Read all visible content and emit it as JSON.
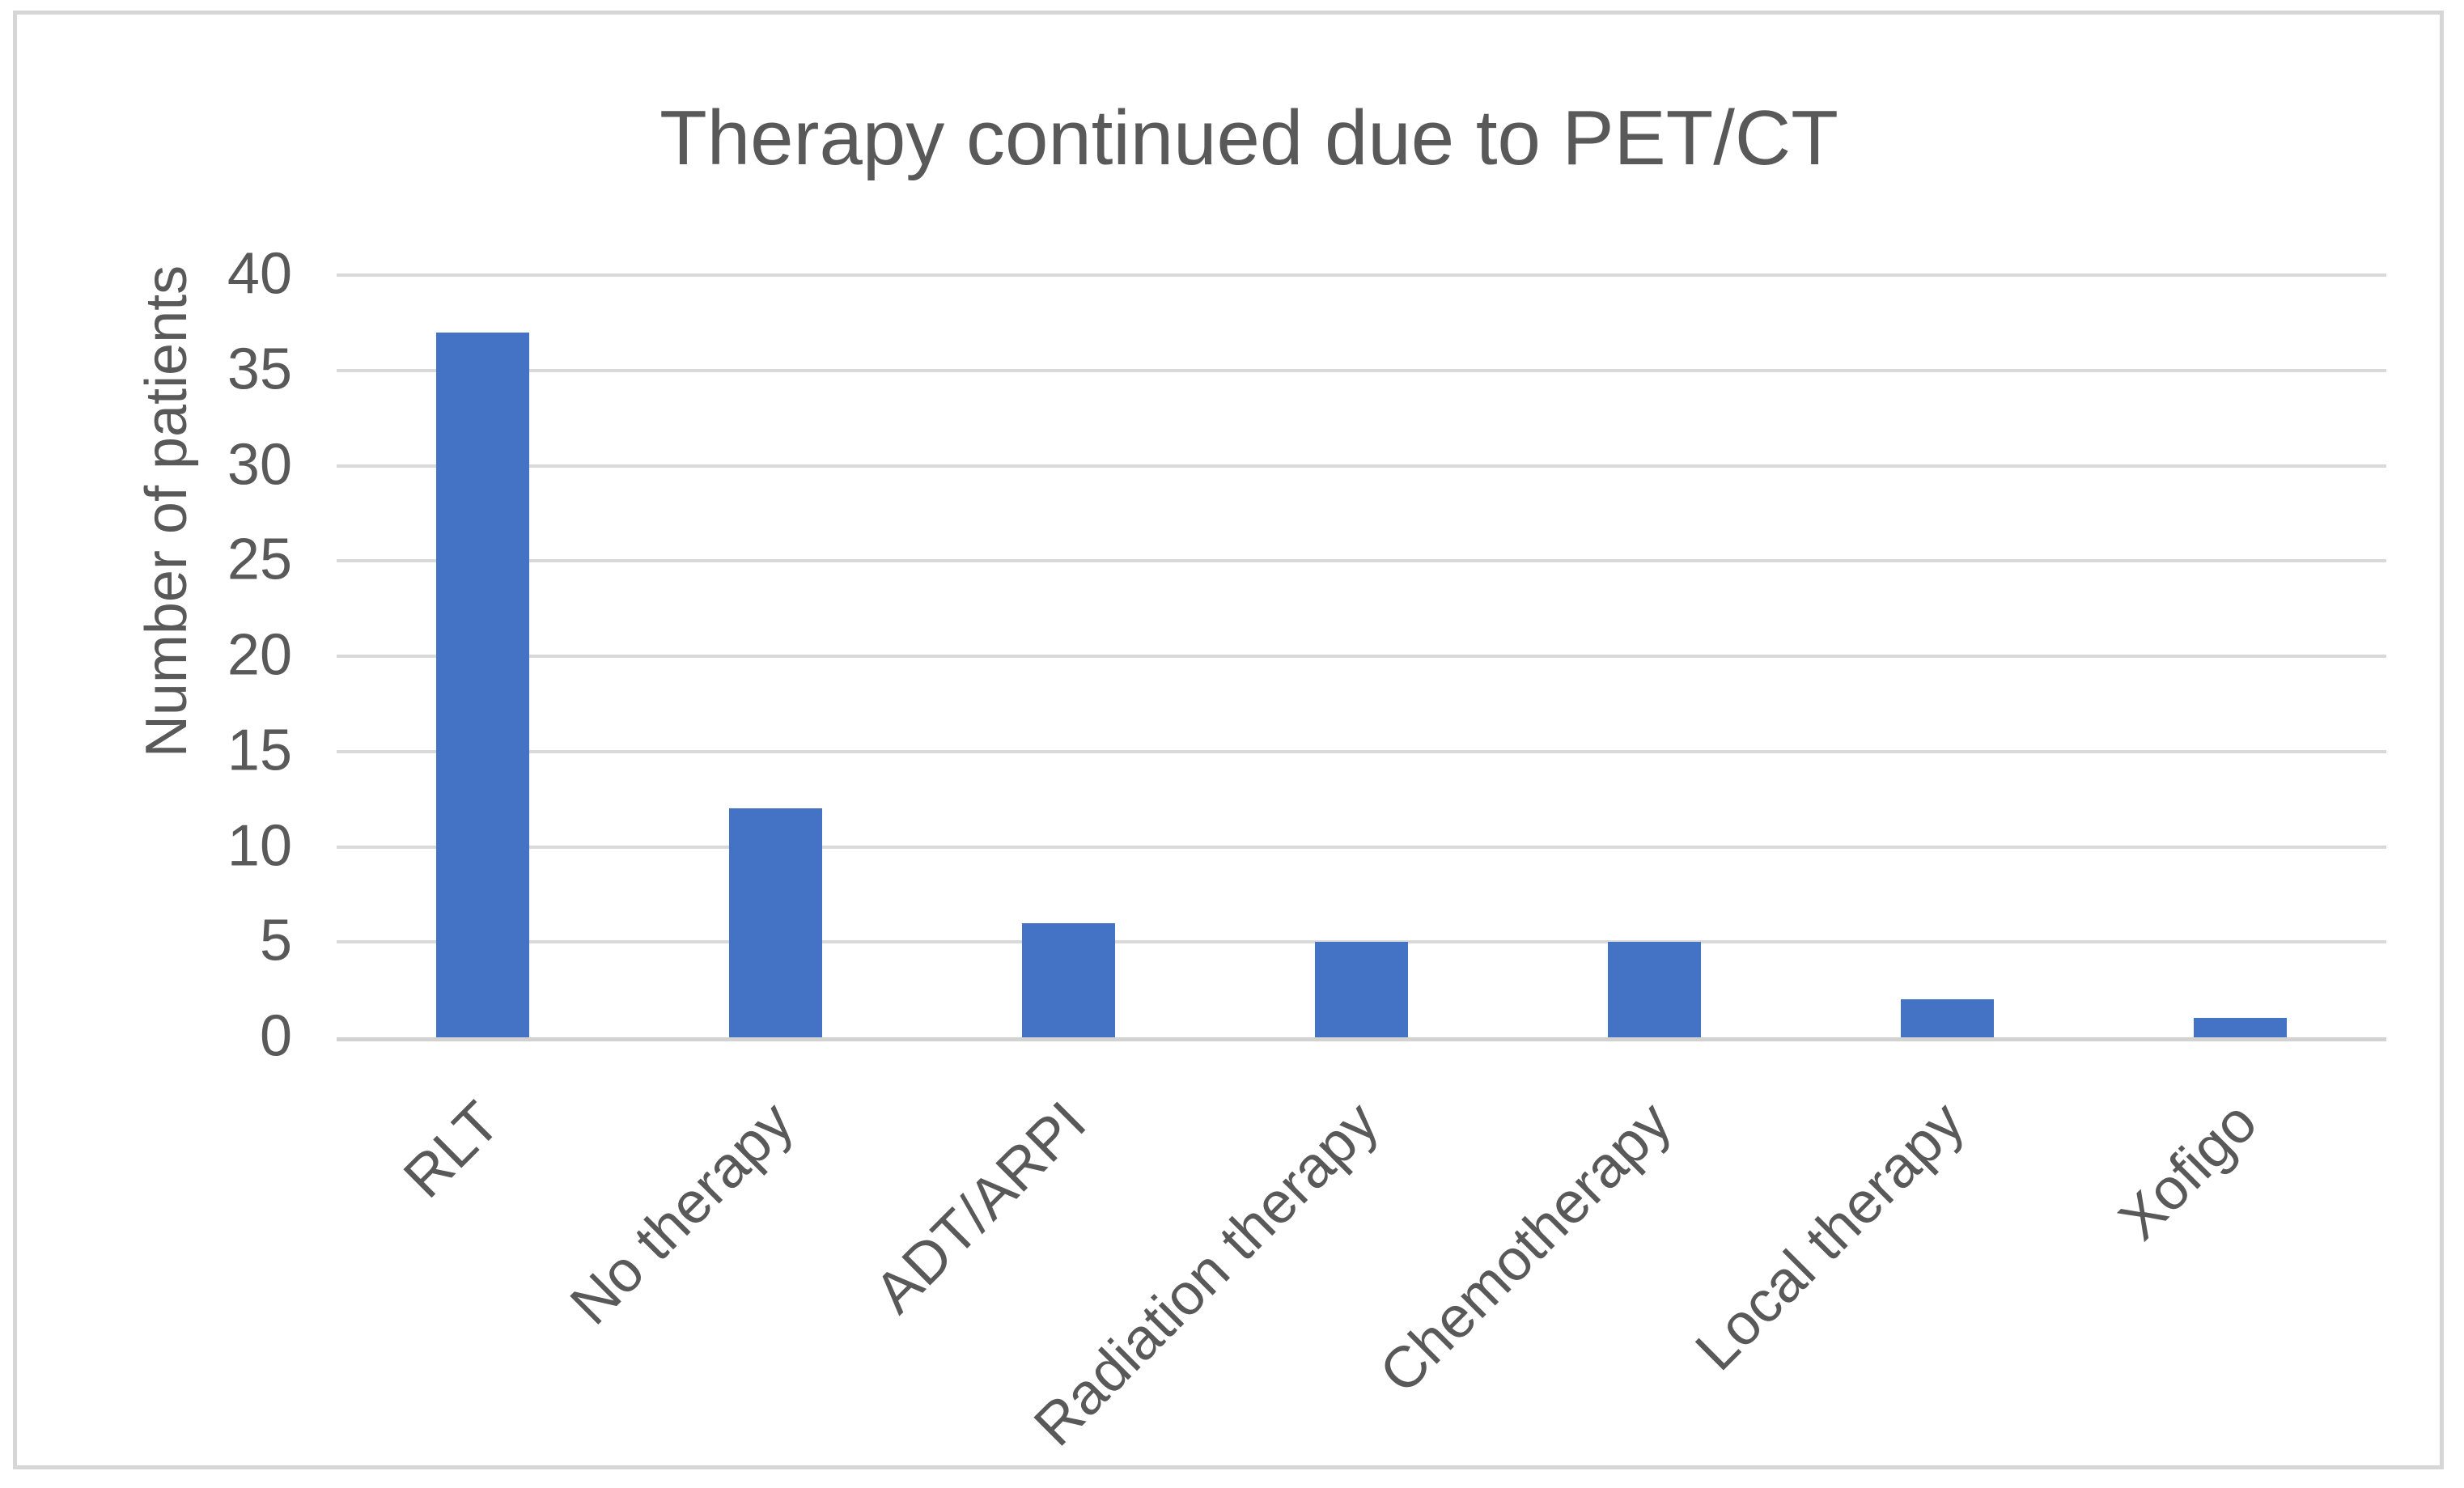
{
  "chart_data": {
    "type": "bar",
    "title": "Therapy continued due to PET/CT",
    "xlabel": "",
    "ylabel": "Number of patients",
    "categories": [
      "RLT",
      "No therapy",
      "ADT/ARPI",
      "Radiation therapy",
      "Chemotherapy",
      "Local therapy",
      "Xofigo"
    ],
    "values": [
      37,
      12,
      6,
      5,
      5,
      2,
      1
    ],
    "ylim": [
      0,
      40
    ],
    "yticks": [
      0,
      5,
      10,
      15,
      20,
      25,
      30,
      35,
      40
    ],
    "grid": true,
    "legend": "none",
    "bar_color": "#4472C4",
    "text_color": "#595959",
    "gridline_color": "#D9D9D9",
    "frame_border_color": "#D6D6D6",
    "background_color": "#FFFFFF"
  }
}
